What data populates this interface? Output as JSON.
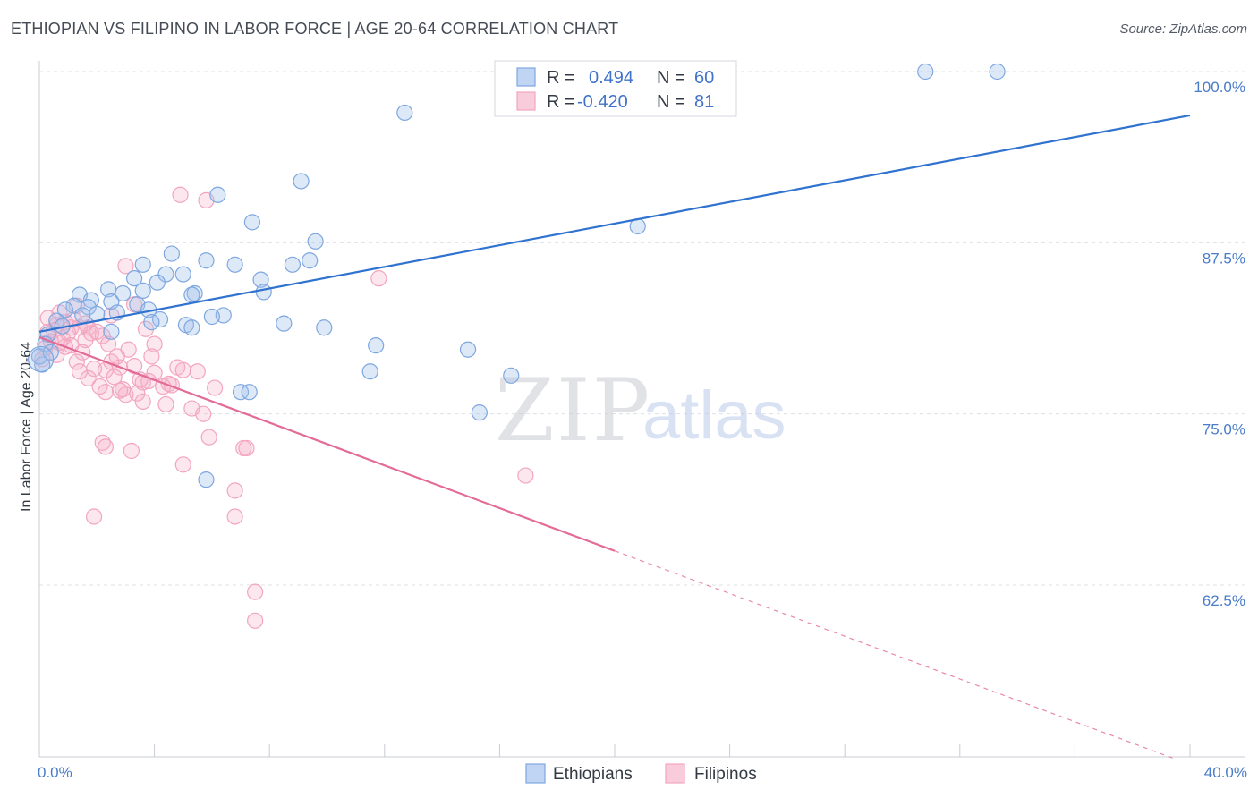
{
  "header": {
    "title": "ETHIOPIAN VS FILIPINO IN LABOR FORCE | AGE 20-64 CORRELATION CHART",
    "source": "Source: ZipAtlas.com"
  },
  "watermark": {
    "zip": "ZIP",
    "atlas": "atlas"
  },
  "chart_data": {
    "type": "scatter",
    "ylabel": "In Labor Force | Age 20-64",
    "xlim": [
      0,
      40
    ],
    "ylim": [
      52,
      100.5
    ],
    "x_tick_labels": [
      {
        "x": 0,
        "label": "0.0%"
      },
      {
        "x": 40,
        "label": "40.0%"
      }
    ],
    "y_ticks": [
      {
        "y": 100,
        "label": "100.0%"
      },
      {
        "y": 87.5,
        "label": "87.5%"
      },
      {
        "y": 75,
        "label": "75.0%"
      },
      {
        "y": 62.5,
        "label": "62.5%"
      }
    ],
    "legend": {
      "rows": [
        {
          "series": "Ethiopians",
          "r_label": "R =",
          "r_value": "0.494",
          "n_label": "N =",
          "n_value": "60"
        },
        {
          "series": "Filipinos",
          "r_label": "R =",
          "r_value": "-0.420",
          "n_label": "N =",
          "n_value": "81"
        }
      ]
    },
    "series": [
      {
        "name": "Ethiopians",
        "color": "#7ea7e0",
        "line_color": "#2f72cf",
        "trend": {
          "x0": 0,
          "y0": 81.0,
          "x1": 40,
          "y1": 96.8
        },
        "points": [
          [
            30.8,
            100.0
          ],
          [
            33.3,
            100.0
          ],
          [
            12.7,
            97.0
          ],
          [
            9.1,
            92.0
          ],
          [
            6.2,
            91.0
          ],
          [
            7.4,
            89.0
          ],
          [
            20.8,
            88.7
          ],
          [
            9.6,
            87.6
          ],
          [
            4.6,
            86.7
          ],
          [
            5.8,
            86.2
          ],
          [
            9.4,
            86.2
          ],
          [
            6.8,
            85.9
          ],
          [
            8.8,
            85.9
          ],
          [
            3.6,
            85.9
          ],
          [
            4.4,
            85.2
          ],
          [
            5.0,
            85.2
          ],
          [
            3.3,
            84.9
          ],
          [
            7.7,
            84.8
          ],
          [
            4.1,
            84.6
          ],
          [
            2.4,
            84.1
          ],
          [
            3.6,
            84.0
          ],
          [
            2.9,
            83.8
          ],
          [
            1.4,
            83.7
          ],
          [
            5.4,
            83.8
          ],
          [
            5.3,
            83.7
          ],
          [
            7.8,
            83.9
          ],
          [
            1.8,
            83.3
          ],
          [
            2.5,
            83.2
          ],
          [
            3.4,
            83.0
          ],
          [
            1.2,
            82.9
          ],
          [
            1.7,
            82.8
          ],
          [
            0.9,
            82.6
          ],
          [
            2.7,
            82.4
          ],
          [
            3.8,
            82.6
          ],
          [
            1.5,
            82.2
          ],
          [
            6.4,
            82.2
          ],
          [
            6.0,
            82.1
          ],
          [
            2.0,
            82.3
          ],
          [
            4.2,
            81.9
          ],
          [
            3.9,
            81.7
          ],
          [
            8.5,
            81.6
          ],
          [
            0.6,
            81.8
          ],
          [
            5.1,
            81.5
          ],
          [
            5.3,
            81.3
          ],
          [
            9.9,
            81.3
          ],
          [
            0.8,
            81.4
          ],
          [
            2.5,
            81.0
          ],
          [
            0.3,
            80.8
          ],
          [
            0.2,
            80.1
          ],
          [
            11.7,
            80.0
          ],
          [
            14.9,
            79.7
          ],
          [
            11.5,
            78.1
          ],
          [
            16.4,
            77.8
          ],
          [
            0.1,
            78.6
          ],
          [
            7.0,
            76.6
          ],
          [
            7.3,
            76.6
          ],
          [
            15.3,
            75.1
          ],
          [
            5.8,
            70.2
          ],
          [
            0.0,
            79.2
          ],
          [
            0.4,
            79.5
          ]
        ]
      },
      {
        "name": "Filipinos",
        "color": "#f3a5bf",
        "line_color": "#e36b97",
        "trend": {
          "x0": 0,
          "y0": 80.6,
          "x1": 20.0,
          "y1": 65.0
        },
        "trend_dashed": {
          "x0": 20.0,
          "y0": 65.0,
          "x1": 40,
          "y1": 49.4
        },
        "points": [
          [
            4.9,
            91.0
          ],
          [
            5.8,
            90.6
          ],
          [
            3.0,
            85.8
          ],
          [
            11.8,
            84.9
          ],
          [
            1.3,
            82.9
          ],
          [
            3.3,
            83.0
          ],
          [
            0.7,
            82.4
          ],
          [
            2.5,
            82.2
          ],
          [
            1.2,
            81.9
          ],
          [
            1.7,
            81.3
          ],
          [
            0.9,
            81.7
          ],
          [
            0.6,
            81.5
          ],
          [
            3.7,
            81.2
          ],
          [
            1.4,
            81.3
          ],
          [
            0.3,
            81.0
          ],
          [
            1.0,
            80.9
          ],
          [
            2.2,
            80.7
          ],
          [
            0.8,
            80.5
          ],
          [
            1.6,
            80.4
          ],
          [
            0.4,
            80.3
          ],
          [
            1.1,
            80.0
          ],
          [
            2.4,
            80.1
          ],
          [
            0.2,
            79.8
          ],
          [
            3.1,
            79.7
          ],
          [
            1.5,
            79.5
          ],
          [
            0.6,
            79.3
          ],
          [
            2.7,
            79.2
          ],
          [
            0.1,
            79.0
          ],
          [
            1.9,
            78.3
          ],
          [
            2.3,
            78.2
          ],
          [
            3.3,
            78.5
          ],
          [
            4.8,
            78.4
          ],
          [
            5.0,
            78.2
          ],
          [
            5.5,
            78.1
          ],
          [
            2.8,
            78.4
          ],
          [
            4.0,
            78.0
          ],
          [
            2.6,
            77.7
          ],
          [
            3.8,
            77.4
          ],
          [
            1.7,
            77.6
          ],
          [
            4.5,
            77.2
          ],
          [
            3.5,
            77.5
          ],
          [
            2.1,
            77.0
          ],
          [
            6.1,
            76.9
          ],
          [
            2.3,
            76.6
          ],
          [
            3.0,
            76.4
          ],
          [
            3.6,
            75.9
          ],
          [
            4.4,
            75.7
          ],
          [
            5.3,
            75.4
          ],
          [
            5.7,
            75.0
          ],
          [
            2.9,
            76.8
          ],
          [
            5.9,
            73.3
          ],
          [
            2.2,
            72.9
          ],
          [
            2.3,
            72.6
          ],
          [
            7.1,
            72.5
          ],
          [
            7.2,
            72.5
          ],
          [
            3.2,
            72.3
          ],
          [
            5.0,
            71.3
          ],
          [
            16.9,
            70.5
          ],
          [
            6.8,
            69.4
          ],
          [
            6.8,
            67.5
          ],
          [
            1.9,
            67.5
          ],
          [
            7.5,
            62.0
          ],
          [
            7.5,
            59.9
          ],
          [
            1.3,
            78.8
          ],
          [
            0.5,
            81.1
          ],
          [
            1.8,
            80.9
          ],
          [
            4.6,
            77.1
          ],
          [
            4.3,
            77.0
          ],
          [
            3.4,
            76.5
          ],
          [
            2.0,
            81.0
          ],
          [
            0.9,
            79.9
          ],
          [
            1.4,
            78.1
          ],
          [
            3.9,
            79.2
          ],
          [
            2.5,
            78.8
          ],
          [
            1.6,
            81.6
          ],
          [
            4.0,
            80.1
          ],
          [
            0.3,
            82.0
          ],
          [
            2.8,
            76.7
          ],
          [
            3.6,
            77.3
          ],
          [
            1.1,
            81.3
          ],
          [
            0.7,
            80.2
          ]
        ]
      }
    ]
  }
}
